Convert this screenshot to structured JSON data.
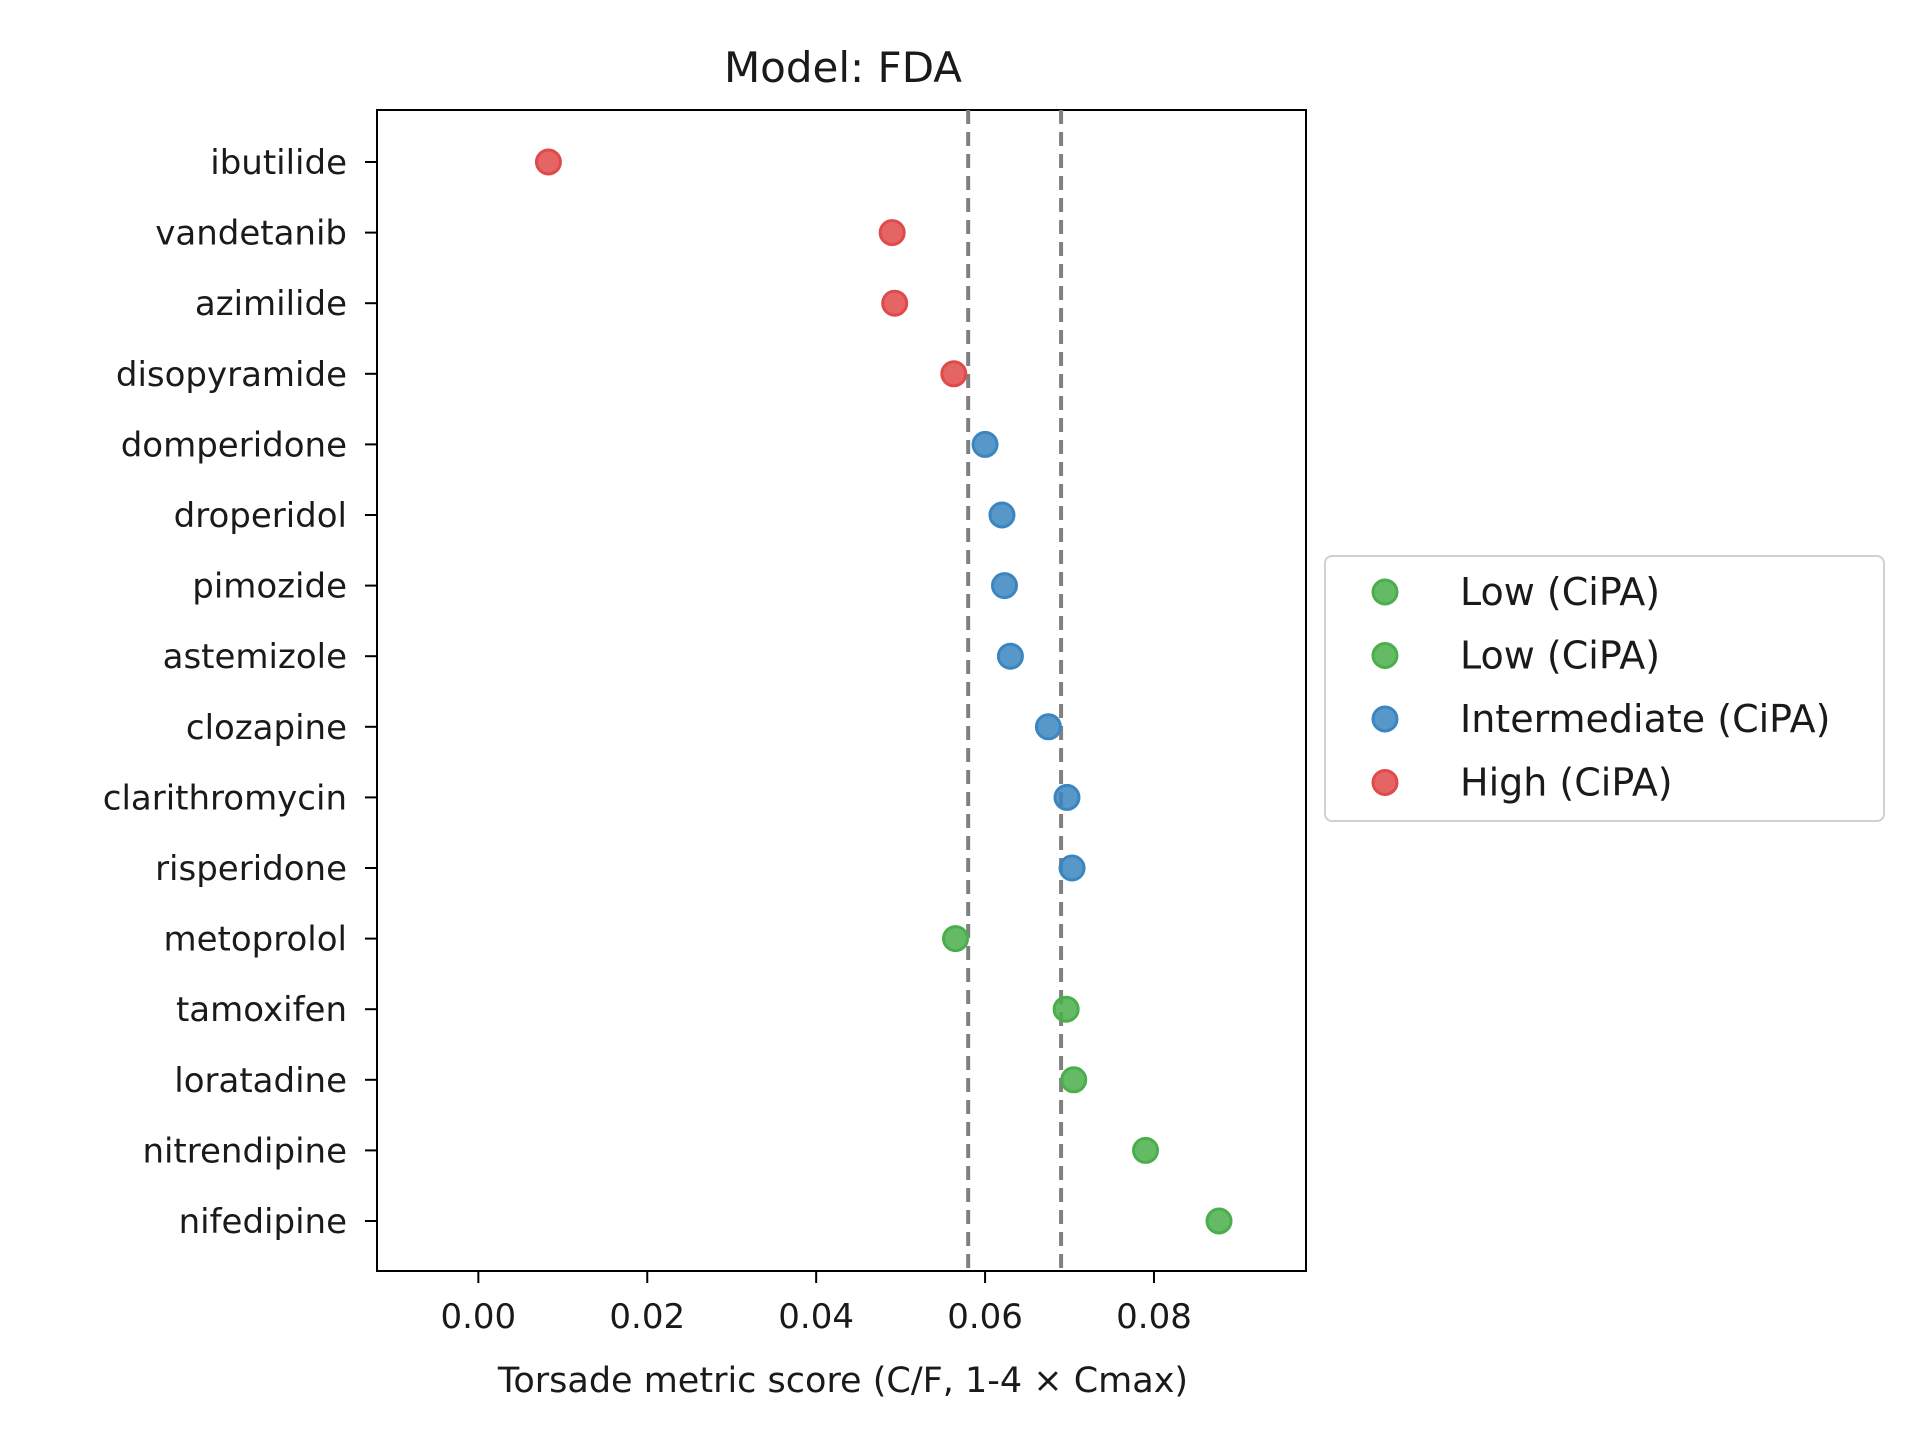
{
  "chart_data": {
    "type": "scatter",
    "title": "Model: FDA",
    "xlabel": "Torsade metric score (C/F, 1-4 × Cmax)",
    "ylabel": "",
    "xlim": [
      -0.012,
      0.098
    ],
    "x_ticks": [
      0.0,
      0.02,
      0.04,
      0.06,
      0.08
    ],
    "x_tick_labels": [
      "0.00",
      "0.02",
      "0.04",
      "0.06",
      "0.08"
    ],
    "grid": false,
    "legend_position": "outside-right",
    "thresholds": [
      0.058,
      0.069
    ],
    "threshold_color": "#808080",
    "colors": {
      "low": "#4aaf4a",
      "intermediate": "#3b86c0",
      "high": "#e04a4a"
    },
    "categories": [
      "ibutilide",
      "vandetanib",
      "azimilide",
      "disopyramide",
      "domperidone",
      "droperidol",
      "pimozide",
      "astemizole",
      "clozapine",
      "clarithromycin",
      "risperidone",
      "metoprolol",
      "tamoxifen",
      "loratadine",
      "nitrendipine",
      "nifedipine"
    ],
    "points": [
      {
        "drug": "ibutilide",
        "x": 0.0083,
        "risk": "high"
      },
      {
        "drug": "vandetanib",
        "x": 0.049,
        "risk": "high"
      },
      {
        "drug": "azimilide",
        "x": 0.0493,
        "risk": "high"
      },
      {
        "drug": "disopyramide",
        "x": 0.0563,
        "risk": "high"
      },
      {
        "drug": "domperidone",
        "x": 0.06,
        "risk": "intermediate"
      },
      {
        "drug": "droperidol",
        "x": 0.062,
        "risk": "intermediate"
      },
      {
        "drug": "pimozide",
        "x": 0.0623,
        "risk": "intermediate"
      },
      {
        "drug": "astemizole",
        "x": 0.063,
        "risk": "intermediate"
      },
      {
        "drug": "clozapine",
        "x": 0.0675,
        "risk": "intermediate"
      },
      {
        "drug": "clarithromycin",
        "x": 0.0697,
        "risk": "intermediate"
      },
      {
        "drug": "risperidone",
        "x": 0.0703,
        "risk": "intermediate"
      },
      {
        "drug": "metoprolol",
        "x": 0.0565,
        "risk": "low"
      },
      {
        "drug": "tamoxifen",
        "x": 0.0696,
        "risk": "low"
      },
      {
        "drug": "loratadine",
        "x": 0.0705,
        "risk": "low"
      },
      {
        "drug": "nitrendipine",
        "x": 0.079,
        "risk": "low"
      },
      {
        "drug": "nifedipine",
        "x": 0.0877,
        "risk": "low"
      }
    ],
    "legend": [
      {
        "label": "Low (CiPA)",
        "risk": "low"
      },
      {
        "label": "Low (CiPA)",
        "risk": "low"
      },
      {
        "label": "Intermediate (CiPA)",
        "risk": "intermediate"
      },
      {
        "label": "High (CiPA)",
        "risk": "high"
      }
    ]
  }
}
